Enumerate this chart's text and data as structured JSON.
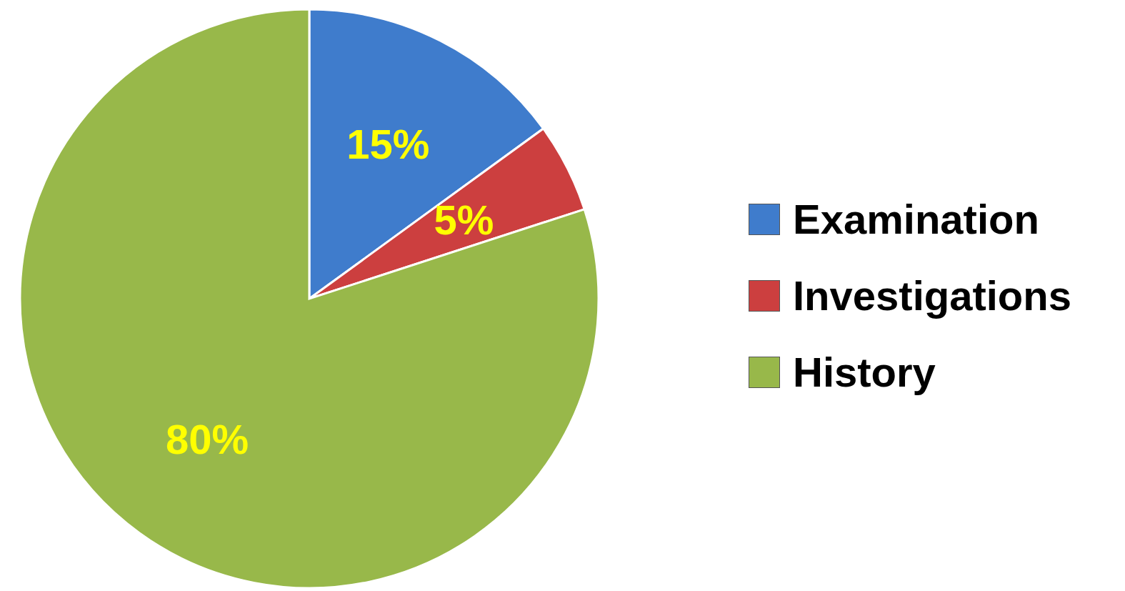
{
  "chart_data": {
    "type": "pie",
    "categories": [
      "Examination",
      "Investigations",
      "History"
    ],
    "values": [
      15,
      5,
      80
    ],
    "colors": [
      "#3f7ccc",
      "#cc3f3f",
      "#98b84a"
    ],
    "value_labels": [
      "15%",
      "5%",
      "80%"
    ],
    "legend": "right"
  }
}
